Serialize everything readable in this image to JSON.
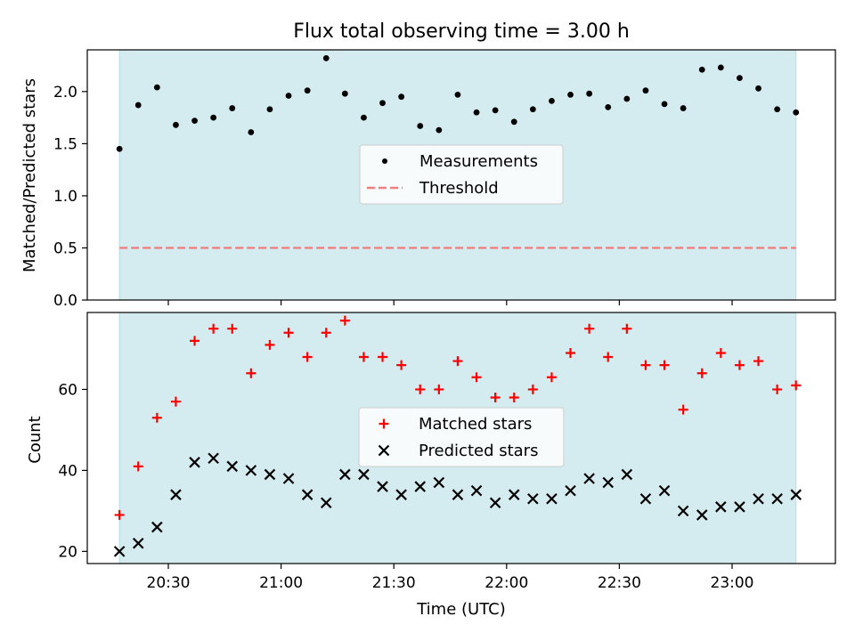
{
  "chart_data": [
    {
      "type": "scatter",
      "title": "Flux total observing time = 3.00 h",
      "xlabel": "",
      "ylabel": "Matched/Predicted stars",
      "ylim": [
        0,
        2.4
      ],
      "yticks": [
        "0.0",
        "0.5",
        "1.0",
        "1.5",
        "2.0"
      ],
      "xticks": [
        "20:30",
        "21:00",
        "21:30",
        "22:00",
        "22:30",
        "23:00"
      ],
      "shaded_region": {
        "start": "20:17",
        "end": "23:17",
        "color": "#d4ebf0"
      },
      "legend": {
        "placement": "center",
        "items": [
          "Measurements",
          "Threshold"
        ]
      },
      "series": [
        {
          "name": "Measurements",
          "marker": "dot",
          "color": "#000000",
          "x": [
            "20:17",
            "20:22",
            "20:27",
            "20:32",
            "20:37",
            "20:42",
            "20:47",
            "20:52",
            "20:57",
            "21:02",
            "21:07",
            "21:12",
            "21:17",
            "21:22",
            "21:27",
            "21:32",
            "21:37",
            "21:42",
            "21:47",
            "21:52",
            "21:57",
            "22:02",
            "22:07",
            "22:12",
            "22:17",
            "22:22",
            "22:27",
            "22:32",
            "22:37",
            "22:42",
            "22:47",
            "22:52",
            "22:57",
            "23:02",
            "23:07",
            "23:12",
            "23:17"
          ],
          "values": [
            1.45,
            1.87,
            2.04,
            1.68,
            1.72,
            1.75,
            1.84,
            1.61,
            1.83,
            1.96,
            2.01,
            2.32,
            1.98,
            1.75,
            1.89,
            1.95,
            1.67,
            1.63,
            1.97,
            1.8,
            1.82,
            1.71,
            1.83,
            1.91,
            1.97,
            1.98,
            1.85,
            1.93,
            2.01,
            1.88,
            1.84,
            2.21,
            2.23,
            2.13,
            2.03,
            1.83,
            1.8
          ]
        },
        {
          "name": "Threshold",
          "marker": "dashed-line",
          "color": "#f08080",
          "x": [
            "20:17",
            "23:17"
          ],
          "values": [
            0.5,
            0.5
          ]
        }
      ]
    },
    {
      "type": "scatter",
      "title": "",
      "xlabel": "Time (UTC)",
      "ylabel": "Count",
      "ylim": [
        17,
        79
      ],
      "yticks": [
        "20",
        "40",
        "60"
      ],
      "xticks": [
        "20:30",
        "21:00",
        "21:30",
        "22:00",
        "22:30",
        "23:00"
      ],
      "shaded_region": {
        "start": "20:17",
        "end": "23:17",
        "color": "#d4ebf0"
      },
      "legend": {
        "placement": "center",
        "items": [
          "Matched stars",
          "Predicted stars"
        ]
      },
      "series": [
        {
          "name": "Matched stars",
          "marker": "plus",
          "color": "#ff0000",
          "x": [
            "20:17",
            "20:22",
            "20:27",
            "20:32",
            "20:37",
            "20:42",
            "20:47",
            "20:52",
            "20:57",
            "21:02",
            "21:07",
            "21:12",
            "21:17",
            "21:22",
            "21:27",
            "21:32",
            "21:37",
            "21:42",
            "21:47",
            "21:52",
            "21:57",
            "22:02",
            "22:07",
            "22:12",
            "22:17",
            "22:22",
            "22:27",
            "22:32",
            "22:37",
            "22:42",
            "22:47",
            "22:52",
            "22:57",
            "23:02",
            "23:07",
            "23:12",
            "23:17"
          ],
          "values": [
            29,
            41,
            53,
            57,
            72,
            75,
            75,
            64,
            71,
            74,
            68,
            74,
            77,
            68,
            68,
            66,
            60,
            60,
            67,
            63,
            58,
            58,
            60,
            63,
            69,
            75,
            68,
            75,
            66,
            66,
            55,
            64,
            69,
            66,
            67,
            60,
            61
          ]
        },
        {
          "name": "Predicted stars",
          "marker": "x",
          "color": "#000000",
          "x": [
            "20:17",
            "20:22",
            "20:27",
            "20:32",
            "20:37",
            "20:42",
            "20:47",
            "20:52",
            "20:57",
            "21:02",
            "21:07",
            "21:12",
            "21:17",
            "21:22",
            "21:27",
            "21:32",
            "21:37",
            "21:42",
            "21:47",
            "21:52",
            "21:57",
            "22:02",
            "22:07",
            "22:12",
            "22:17",
            "22:22",
            "22:27",
            "22:32",
            "22:37",
            "22:42",
            "22:47",
            "22:52",
            "22:57",
            "23:02",
            "23:07",
            "23:12",
            "23:17"
          ],
          "values": [
            20,
            22,
            26,
            34,
            42,
            43,
            41,
            40,
            39,
            38,
            34,
            32,
            39,
            39,
            36,
            34,
            36,
            37,
            34,
            35,
            32,
            34,
            33,
            33,
            35,
            38,
            37,
            39,
            33,
            35,
            30,
            29,
            31,
            31,
            33,
            33,
            34
          ]
        }
      ]
    }
  ]
}
